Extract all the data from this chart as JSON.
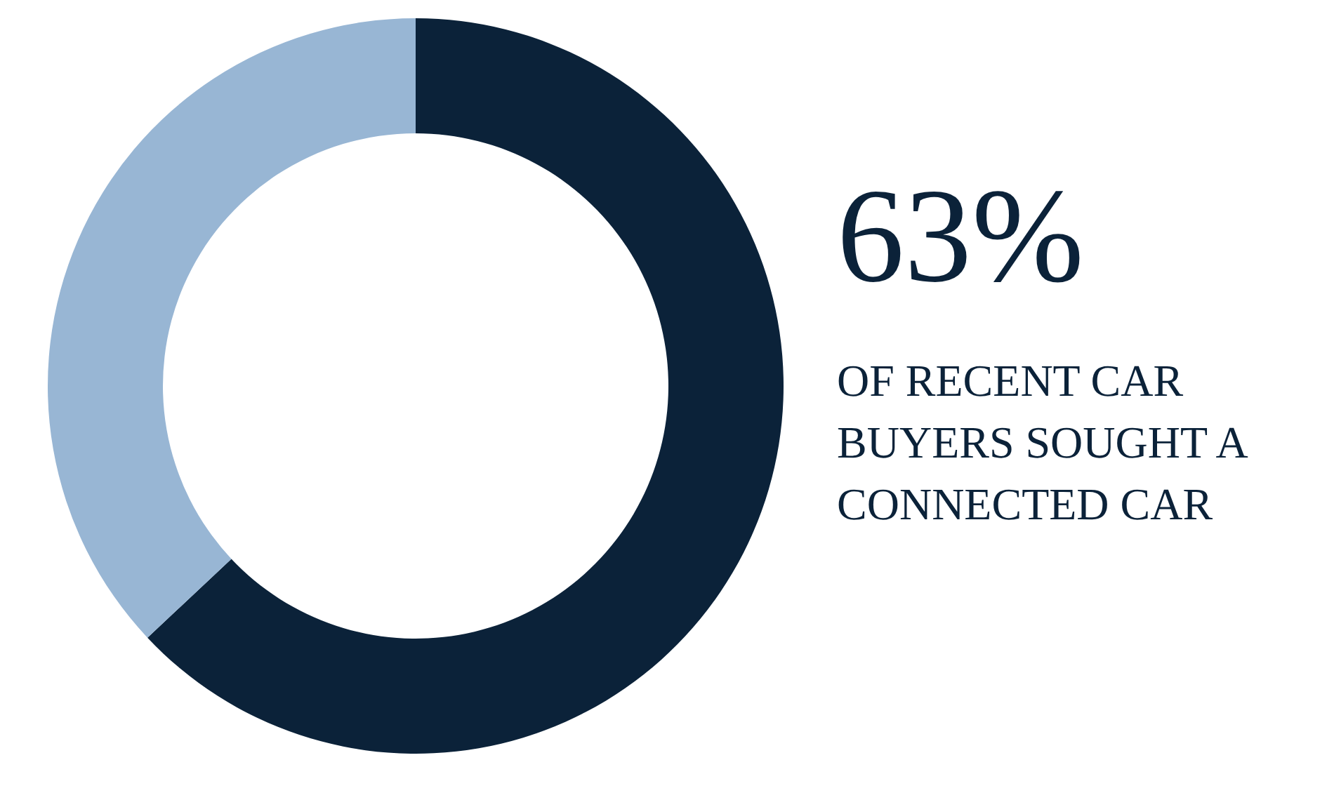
{
  "chart_data": {
    "type": "donut",
    "categories": [
      null,
      null
    ],
    "values": [
      63,
      37
    ],
    "colors": [
      "#0b2239",
      "#98b6d4"
    ],
    "annotations": [
      "63%",
      "OF RECENT CAR BUYERS SOUGHT A CONNECTED CAR"
    ]
  }
}
